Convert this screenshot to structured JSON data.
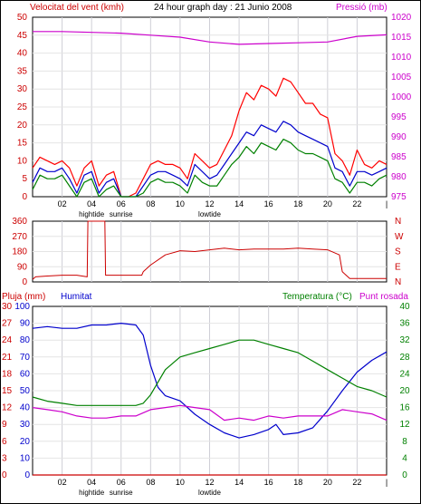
{
  "chart_data": [
    {
      "type": "line",
      "title": "24 hour graph day : 21 Junio 2008",
      "ylabel_left": "Velocitat del vent (kmh)",
      "ylabel_right": "Pressió (mb)",
      "ylim_left": [
        0,
        50
      ],
      "yticks_left": [
        "0",
        "5",
        "10",
        "15",
        "20",
        "25",
        "30",
        "35",
        "40",
        "45",
        "50"
      ],
      "ylim_right": [
        975,
        1020
      ],
      "yticks_right": [
        "975",
        "980",
        "985",
        "990",
        "995",
        "1000",
        "1005",
        "1010",
        "1015",
        "1020"
      ],
      "xticks": [
        "02",
        "04",
        "06",
        "08",
        "10",
        "12",
        "14",
        "16",
        "18",
        "20",
        "22"
      ],
      "x_markers": [
        "hightide",
        "sunrise",
        "lowtide"
      ],
      "series": [
        {
          "name": "Velocitat del vent",
          "color": "#ff0000",
          "axis": "left",
          "x": [
            0,
            0.5,
            1,
            1.5,
            2,
            2.5,
            3,
            3.5,
            4,
            4.5,
            5,
            5.5,
            6,
            6.5,
            7,
            7.5,
            8,
            8.5,
            9,
            9.5,
            10,
            10.5,
            11,
            11.5,
            12,
            12.5,
            13,
            13.5,
            14,
            14.5,
            15,
            15.5,
            16,
            16.5,
            17,
            17.5,
            18,
            18.5,
            19,
            19.5,
            20,
            20.5,
            21,
            21.5,
            22,
            22.5,
            23,
            23.5,
            24
          ],
          "y": [
            8,
            11,
            10,
            9,
            10,
            8,
            3,
            8,
            10,
            3,
            6,
            7,
            0,
            0,
            1,
            5,
            9,
            10,
            9,
            9,
            8,
            5,
            12,
            10,
            8,
            9,
            13,
            17,
            24,
            29,
            27,
            31,
            30,
            28,
            33,
            32,
            29,
            26,
            26,
            23,
            22,
            12,
            10,
            6,
            13,
            9,
            8,
            10,
            9
          ]
        },
        {
          "color": "#0000cc",
          "axis": "left",
          "x": [
            0,
            0.5,
            1,
            1.5,
            2,
            2.5,
            3,
            3.5,
            4,
            4.5,
            5,
            5.5,
            6,
            6.5,
            7,
            7.5,
            8,
            8.5,
            9,
            9.5,
            10,
            10.5,
            11,
            11.5,
            12,
            12.5,
            13,
            13.5,
            14,
            14.5,
            15,
            15.5,
            16,
            16.5,
            17,
            17.5,
            18,
            18.5,
            19,
            19.5,
            20,
            20.5,
            21,
            21.5,
            22,
            22.5,
            23,
            23.5,
            24
          ],
          "y": [
            4,
            8,
            7,
            7,
            8,
            5,
            1,
            6,
            7,
            1,
            4,
            5,
            0,
            0,
            0,
            3,
            6,
            7,
            7,
            6,
            5,
            3,
            9,
            7,
            5,
            6,
            9,
            12,
            15,
            18,
            17,
            20,
            19,
            18,
            21,
            20,
            18,
            17,
            16,
            15,
            14,
            8,
            7,
            3,
            7,
            7,
            6,
            7,
            8
          ]
        },
        {
          "color": "#008000",
          "axis": "left",
          "x": [
            0,
            0.5,
            1,
            1.5,
            2,
            2.5,
            3,
            3.5,
            4,
            4.5,
            5,
            5.5,
            6,
            6.5,
            7,
            7.5,
            8,
            8.5,
            9,
            9.5,
            10,
            10.5,
            11,
            11.5,
            12,
            12.5,
            13,
            13.5,
            14,
            14.5,
            15,
            15.5,
            16,
            16.5,
            17,
            17.5,
            18,
            18.5,
            19,
            19.5,
            20,
            20.5,
            21,
            21.5,
            22,
            22.5,
            23,
            23.5,
            24
          ],
          "y": [
            2,
            6,
            5,
            5,
            6,
            3,
            0,
            4,
            5,
            0,
            2,
            3,
            0,
            0,
            0,
            1,
            4,
            5,
            4,
            4,
            3,
            1,
            6,
            4,
            3,
            3,
            6,
            9,
            11,
            14,
            12,
            15,
            14,
            13,
            16,
            15,
            13,
            12,
            12,
            11,
            10,
            5,
            4,
            1,
            4,
            4,
            3,
            5,
            6
          ]
        },
        {
          "color": "#cc00cc",
          "axis": "right",
          "x": [
            0,
            2,
            4,
            6,
            8,
            10,
            12,
            14,
            16,
            18,
            20,
            22,
            24
          ],
          "y": [
            1016.4,
            1016.4,
            1016.2,
            1016.0,
            1015.5,
            1015.0,
            1013.8,
            1013.2,
            1013.4,
            1013.6,
            1013.8,
            1015.2,
            1015.6
          ]
        }
      ]
    },
    {
      "type": "line",
      "ylabel_right_letters": [
        "N",
        "W",
        "S",
        "E",
        "N"
      ],
      "ylim": [
        0,
        360
      ],
      "yticks": [
        "0",
        "90",
        "180",
        "270",
        "360"
      ],
      "series": [
        {
          "color": "#cc0000",
          "x": [
            0,
            0.2,
            1,
            2,
            3,
            3.7,
            3.75,
            4.9,
            4.95,
            7.4,
            7.5,
            8,
            9,
            10,
            11,
            12,
            13,
            14,
            15,
            16,
            17,
            18,
            19,
            20,
            20.8,
            21,
            21.5,
            22,
            23,
            24
          ],
          "y": [
            15,
            30,
            35,
            40,
            40,
            30,
            360,
            360,
            40,
            40,
            60,
            100,
            160,
            185,
            180,
            190,
            200,
            190,
            195,
            195,
            195,
            200,
            195,
            190,
            160,
            60,
            20,
            20,
            20,
            20
          ]
        }
      ]
    },
    {
      "type": "line",
      "labels_top": [
        "Pluja (mm)",
        "Humitat",
        "Temperatura (°C)",
        "Punt rosada"
      ],
      "yticks_pluja": [
        "0",
        "3",
        "6",
        "9",
        "12",
        "15",
        "18",
        "21",
        "24",
        "27",
        "30"
      ],
      "yticks_humitat": [
        "0",
        "10",
        "20",
        "30",
        "40",
        "50",
        "60",
        "70",
        "80",
        "90",
        "100"
      ],
      "yticks_temp": [
        "0",
        "4",
        "8",
        "12",
        "16",
        "20",
        "24",
        "28",
        "32",
        "36",
        "40"
      ],
      "series": [
        {
          "name": "Humitat",
          "color": "#0000cc",
          "x": [
            0,
            1,
            2,
            3,
            4,
            5,
            6,
            7,
            7.5,
            8,
            8.5,
            9,
            10,
            11,
            12,
            13,
            14,
            15,
            16,
            16.5,
            17,
            18,
            19,
            20,
            21,
            22,
            23,
            24
          ],
          "y": [
            87,
            88,
            87,
            87,
            89,
            89,
            90,
            89,
            83,
            65,
            52,
            47,
            44,
            36,
            30,
            25,
            22,
            24,
            27,
            30,
            24,
            25,
            28,
            38,
            50,
            61,
            68,
            73
          ]
        },
        {
          "name": "Temperatura (°C)",
          "color": "#008000",
          "x": [
            0,
            1,
            2,
            3,
            4,
            5,
            6,
            7,
            7.5,
            8,
            9,
            10,
            11,
            12,
            13,
            14,
            15,
            16,
            17,
            18,
            19,
            20,
            21,
            22,
            23,
            24
          ],
          "y": [
            18.5,
            17.5,
            17,
            16.5,
            16.5,
            16.5,
            16.5,
            16.5,
            17,
            19,
            25,
            28,
            29,
            30,
            31,
            32,
            32,
            31,
            30,
            29,
            27,
            25,
            23,
            21,
            20,
            18.5
          ]
        },
        {
          "name": "Punt rosada",
          "color": "#cc00cc",
          "x": [
            0,
            1,
            2,
            3,
            4,
            5,
            6,
            7,
            8,
            9,
            10,
            11,
            12,
            13,
            14,
            15,
            16,
            17,
            18,
            19,
            20,
            21,
            22,
            23,
            24
          ],
          "y": [
            16,
            15.5,
            15,
            14,
            13.5,
            13.5,
            14,
            14,
            15.5,
            16,
            16.5,
            16,
            15.5,
            13,
            13.5,
            13,
            14,
            13.5,
            14,
            14,
            14,
            15.5,
            15,
            14.5,
            13
          ]
        },
        {
          "name": "Pluja (mm)",
          "color": "#cc0000",
          "x": [
            0,
            24
          ],
          "y": [
            0,
            0
          ]
        }
      ]
    }
  ]
}
